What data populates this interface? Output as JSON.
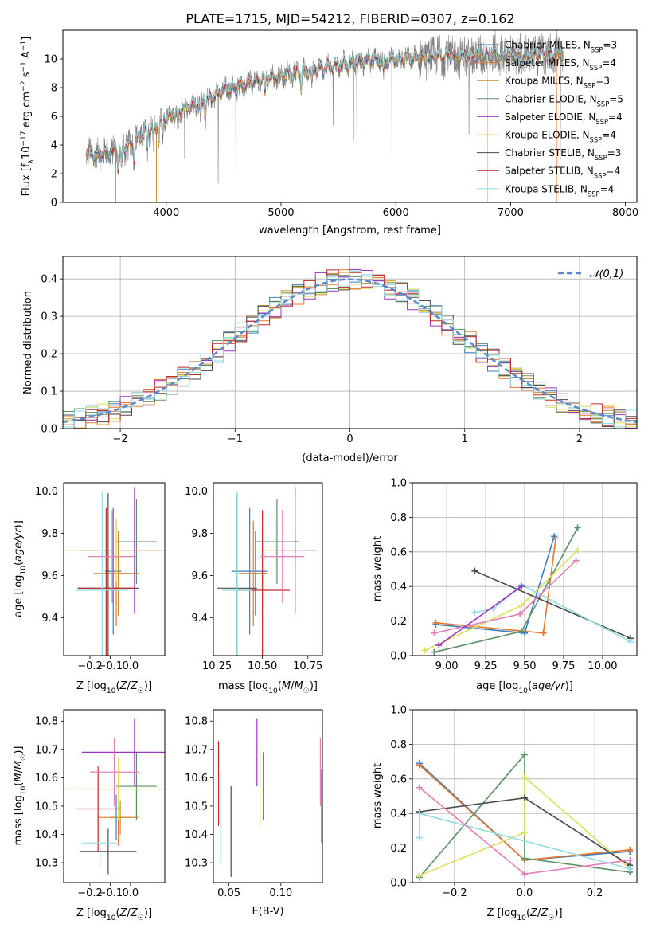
{
  "figure_title": "PLATE=1715, MJD=54212, FIBERID=0307, z=0.162",
  "colors": {
    "data": "#808080",
    "c_miles": "#3a7ebf",
    "s_miles": "#e8762a",
    "k_miles": "#c98d38",
    "c_elodie": "#5c8f64",
    "s_elodie": "#9a33c4",
    "k_elodie": "#dde05a",
    "c_stelib": "#4a4a4a",
    "s_stelib": "#c0282a",
    "k_stelib": "#90dde3",
    "normal": "#5588cc",
    "pink": "#e57fb8",
    "grid": "#b0b0b0"
  },
  "chart_data": [
    {
      "id": "spectrum",
      "type": "line",
      "title": "PLATE=1715, MJD=54212, FIBERID=0307, z=0.162",
      "xlabel": "wavelength [Angstrom, rest frame]",
      "ylabel": "Flux [f_λ10^-17 erg cm^-2 s^-1 A^-1]",
      "xlim": [
        3100,
        8100
      ],
      "ylim": [
        0,
        12
      ],
      "xticks": [
        4000,
        5000,
        6000,
        7000,
        8000
      ],
      "yticks": [
        0,
        2,
        4,
        6,
        8,
        10
      ],
      "grid": false,
      "legend_position": "top-right",
      "continuum": {
        "x": [
          3300,
          3400,
          3500,
          3600,
          3700,
          3800,
          3900,
          4000,
          4100,
          4200,
          4300,
          4400,
          4500,
          4600,
          4700,
          4800,
          4900,
          5000,
          5200,
          5400,
          5600,
          5800,
          6000,
          6200,
          6400,
          6600,
          6800,
          7000,
          7200,
          7400,
          7460
        ],
        "y": [
          3.4,
          3.3,
          3.5,
          3.6,
          4.1,
          4.8,
          5.2,
          5.8,
          6.3,
          6.7,
          6.9,
          7.3,
          7.8,
          8.0,
          8.3,
          8.6,
          8.7,
          8.8,
          9.2,
          9.4,
          9.7,
          9.9,
          10.0,
          10.1,
          10.2,
          10.2,
          10.3,
          10.2,
          10.3,
          10.4,
          10.3
        ]
      },
      "series": [
        {
          "name": "Chabrier MILES, N_SSP=3",
          "key": "c_miles"
        },
        {
          "name": "Salpeter MILES, N_SSP=4",
          "key": "s_miles"
        },
        {
          "name": "Kroupa MILES, N_SSP=3",
          "key": "k_miles"
        },
        {
          "name": "Chabrier ELODIE, N_SSP=5",
          "key": "c_elodie"
        },
        {
          "name": "Salpeter ELODIE, N_SSP=4",
          "key": "s_elodie"
        },
        {
          "name": "Kroupa ELODIE, N_SSP=4",
          "key": "k_elodie"
        },
        {
          "name": "Chabrier STELIB, N_SSP=3",
          "key": "c_stelib"
        },
        {
          "name": "Salpeter STELIB, N_SSP=4",
          "key": "s_stelib"
        },
        {
          "name": "Kroupa STELIB, N_SSP=4",
          "key": "k_stelib"
        }
      ]
    },
    {
      "id": "residuals",
      "type": "bar",
      "xlabel": "(data-model)/error",
      "ylabel": "Normed distribution",
      "xlim": [
        -2.5,
        2.5
      ],
      "ylim": [
        0,
        0.46
      ],
      "xticks": [
        -2,
        -1,
        0,
        1,
        2
      ],
      "yticks": [
        0.0,
        0.1,
        0.2,
        0.3,
        0.4
      ],
      "grid": true,
      "bin_width": 0.1,
      "normal_curve": {
        "name": "𝒩(0,1)",
        "style": "dashed"
      },
      "legend_position": "top-right"
    },
    {
      "id": "age-vs-Z",
      "type": "scatter",
      "xlabel": "Z [log10(Z/Z☉)]",
      "ylabel": "age  [log10(age/yr)]",
      "xlim": [
        -0.33,
        0.17
      ],
      "ylim": [
        9.22,
        10.04
      ],
      "xticks": [
        -0.2,
        -0.1,
        0.0
      ],
      "yticks": [
        9.4,
        9.6,
        9.8,
        10.0
      ],
      "grid": false,
      "points": [
        {
          "key": "c_miles",
          "x": -0.085,
          "xerr": 0.04,
          "y": 9.62,
          "yerr": 0.3
        },
        {
          "key": "s_miles",
          "x": -0.07,
          "xerr": 0.11,
          "y": 9.61,
          "yerr": 0.25
        },
        {
          "key": "k_miles",
          "x": -0.06,
          "xerr": 0.06,
          "y": 9.61,
          "yerr": 0.2
        },
        {
          "key": "c_elodie",
          "x": 0.03,
          "xerr": 0.1,
          "y": 9.76,
          "yerr": 0.2
        },
        {
          "key": "s_elodie",
          "x": 0.02,
          "xerr": 0.27,
          "y": 9.72,
          "yerr": 0.3
        },
        {
          "key": "k_elodie",
          "x": -0.07,
          "xerr": 0.29,
          "y": 9.72,
          "yerr": 0.15
        },
        {
          "key": "c_stelib",
          "x": -0.11,
          "xerr": 0.15,
          "y": 9.54,
          "yerr": 0.45
        },
        {
          "key": "s_stelib",
          "x": -0.12,
          "xerr": 0.14,
          "y": 9.54,
          "yerr": 0.38
        },
        {
          "key": "k_stelib",
          "x": -0.14,
          "xerr": 0.13,
          "y": 9.53,
          "yerr": 0.47
        },
        {
          "key": "pink",
          "x": -0.09,
          "xerr": 0.12,
          "y": 9.69,
          "yerr": 0.22
        }
      ]
    },
    {
      "id": "age-vs-mass",
      "type": "scatter",
      "xlabel": "mass [log10(M/M☉)]",
      "ylabel": "",
      "xlim": [
        10.23,
        10.83
      ],
      "ylim": [
        9.22,
        10.04
      ],
      "xticks": [
        10.25,
        10.5,
        10.75
      ],
      "yticks": [
        9.4,
        9.6,
        9.8,
        10.0
      ],
      "grid": false,
      "points": [
        {
          "key": "c_miles",
          "x": 10.43,
          "xerr": 0.1,
          "y": 9.62,
          "yerr": 0.3
        },
        {
          "key": "s_miles",
          "x": 10.45,
          "xerr": 0.08,
          "y": 9.61,
          "yerr": 0.25
        },
        {
          "key": "k_miles",
          "x": 10.46,
          "xerr": 0.06,
          "y": 9.61,
          "yerr": 0.2
        },
        {
          "key": "c_elodie",
          "x": 10.58,
          "xerr": 0.12,
          "y": 9.76,
          "yerr": 0.2
        },
        {
          "key": "s_elodie",
          "x": 10.68,
          "xerr": 0.12,
          "y": 9.72,
          "yerr": 0.3
        },
        {
          "key": "k_elodie",
          "x": 10.57,
          "xerr": 0.11,
          "y": 9.72,
          "yerr": 0.15
        },
        {
          "key": "c_stelib",
          "x": 10.36,
          "xerr": 0.11,
          "y": 9.54,
          "yerr": 0.45
        },
        {
          "key": "s_stelib",
          "x": 10.5,
          "xerr": 0.15,
          "y": 9.53,
          "yerr": 0.38
        },
        {
          "key": "k_stelib",
          "x": 10.36,
          "xerr": 0.08,
          "y": 9.53,
          "yerr": 0.47
        },
        {
          "key": "pink",
          "x": 10.61,
          "xerr": 0.12,
          "y": 9.69,
          "yerr": 0.22
        }
      ]
    },
    {
      "id": "weight-vs-age",
      "type": "line",
      "xlabel": "age  [log10(age/yr)]",
      "ylabel": "mass weight",
      "xlim": [
        8.78,
        10.22
      ],
      "ylim": [
        0,
        1
      ],
      "xticks": [
        9.0,
        9.25,
        9.5,
        9.75,
        10.0
      ],
      "yticks": [
        0.0,
        0.2,
        0.4,
        0.6,
        0.8,
        1.0
      ],
      "grid": true,
      "series": [
        {
          "key": "c_miles",
          "x": [
            8.93,
            9.5,
            9.69
          ],
          "y": [
            0.18,
            0.13,
            0.69
          ]
        },
        {
          "key": "s_miles",
          "x": [
            8.93,
            9.62,
            9.7
          ],
          "y": [
            0.19,
            0.13,
            0.68
          ]
        },
        {
          "key": "c_elodie",
          "x": [
            8.92,
            9.48,
            9.84
          ],
          "y": [
            0.02,
            0.14,
            0.74
          ]
        },
        {
          "key": "k_elodie",
          "x": [
            8.86,
            9.48,
            9.84
          ],
          "y": [
            0.03,
            0.29,
            0.61
          ]
        },
        {
          "key": "c_stelib",
          "x": [
            9.18,
            10.18
          ],
          "y": [
            0.49,
            0.1
          ]
        },
        {
          "key": "k_stelib",
          "x": [
            9.18,
            9.3,
            9.48,
            10.18
          ],
          "y": [
            0.25,
            0.27,
            0.41,
            0.08
          ]
        },
        {
          "key": "pink",
          "x": [
            8.92,
            9.47,
            9.83
          ],
          "y": [
            0.13,
            0.24,
            0.55
          ]
        },
        {
          "key": "s_elodie",
          "x": [
            8.95,
            9.48
          ],
          "y": [
            0.06,
            0.4
          ]
        }
      ]
    },
    {
      "id": "mass-vs-Z",
      "type": "scatter",
      "xlabel": "Z [log10(Z/Z☉)]",
      "ylabel": "mass [log10(M/M☉)]",
      "xlim": [
        -0.33,
        0.17
      ],
      "ylim": [
        10.23,
        10.84
      ],
      "xticks": [
        -0.2,
        -0.1,
        0.0
      ],
      "yticks": [
        10.3,
        10.4,
        10.5,
        10.6,
        10.7,
        10.8
      ],
      "grid": false,
      "points": [
        {
          "key": "c_miles",
          "x": -0.07,
          "xerr": 0.03,
          "y": 10.46,
          "yerr": 0.08
        },
        {
          "key": "s_miles",
          "x": -0.06,
          "xerr": 0.1,
          "y": 10.46,
          "yerr": 0.1
        },
        {
          "key": "k_miles",
          "x": -0.05,
          "xerr": 0.05,
          "y": 10.46,
          "yerr": 0.06
        },
        {
          "key": "c_elodie",
          "x": 0.03,
          "xerr": 0.1,
          "y": 10.57,
          "yerr": 0.12
        },
        {
          "key": "s_elodie",
          "x": 0.02,
          "xerr": 0.26,
          "y": 10.69,
          "yerr": 0.12
        },
        {
          "key": "k_elodie",
          "x": -0.06,
          "xerr": 0.28,
          "y": 10.56,
          "yerr": 0.11
        },
        {
          "key": "c_stelib",
          "x": -0.11,
          "xerr": 0.14,
          "y": 10.34,
          "yerr": 0.08
        },
        {
          "key": "s_stelib",
          "x": -0.16,
          "xerr": 0.11,
          "y": 10.49,
          "yerr": 0.15
        },
        {
          "key": "k_stelib",
          "x": -0.15,
          "xerr": 0.09,
          "y": 10.37,
          "yerr": 0.08
        },
        {
          "key": "pink",
          "x": -0.08,
          "xerr": 0.12,
          "y": 10.62,
          "yerr": 0.12
        }
      ]
    },
    {
      "id": "mass-vs-EBV",
      "type": "scatter",
      "xlabel": "E(B-V)",
      "ylabel": "",
      "xlim": [
        0.035,
        0.14
      ],
      "ylim": [
        10.23,
        10.84
      ],
      "xticks": [
        0.05,
        0.1
      ],
      "yticks": [
        10.3,
        10.4,
        10.5,
        10.6,
        10.7,
        10.8
      ],
      "grid": false,
      "points": [
        {
          "key": "s_stelib",
          "x": 0.04,
          "y": 10.58,
          "yerr": 0.15
        },
        {
          "key": "k_stelib",
          "x": 0.042,
          "y": 10.46,
          "yerr": 0.16
        },
        {
          "key": "c_stelib",
          "x": 0.052,
          "y": 10.41,
          "yerr": 0.16
        },
        {
          "key": "s_elodie",
          "x": 0.077,
          "y": 10.69,
          "yerr": 0.12
        },
        {
          "key": "k_elodie",
          "x": 0.08,
          "y": 10.56,
          "yerr": 0.14
        },
        {
          "key": "c_elodie",
          "x": 0.083,
          "y": 10.57,
          "yerr": 0.12
        },
        {
          "key": "pink",
          "x": 0.138,
          "y": 10.62,
          "yerr": 0.12
        },
        {
          "key": "s_miles",
          "x": 0.139,
          "y": 10.5,
          "yerr": 0.13
        }
      ]
    },
    {
      "id": "weight-vs-Z",
      "type": "line",
      "xlabel": "Z [log10(Z/Z☉)]",
      "ylabel": "mass weight",
      "xlim": [
        -0.32,
        0.32
      ],
      "ylim": [
        0,
        1
      ],
      "xticks": [
        -0.2,
        0.0,
        0.2
      ],
      "yticks": [
        0.0,
        0.2,
        0.4,
        0.6,
        0.8,
        1.0
      ],
      "grid": true,
      "series": [
        {
          "key": "c_miles",
          "x": [
            -0.3,
            0.0,
            0.3
          ],
          "y": [
            0.69,
            0.13,
            0.18
          ]
        },
        {
          "key": "s_miles",
          "x": [
            -0.3,
            0.0,
            0.3
          ],
          "y": [
            0.68,
            0.13,
            0.19
          ]
        },
        {
          "key": "c_elodie",
          "x": [
            -0.3,
            0.0,
            0.0,
            0.3
          ],
          "y": [
            0.03,
            0.74,
            0.14,
            0.06
          ]
        },
        {
          "key": "k_elodie",
          "x": [
            -0.3,
            0.0,
            0.0,
            0.3
          ],
          "y": [
            0.04,
            0.29,
            0.61,
            0.08
          ]
        },
        {
          "key": "c_stelib",
          "x": [
            -0.3,
            0.0,
            0.3
          ],
          "y": [
            0.41,
            0.49,
            0.1
          ]
        },
        {
          "key": "k_stelib",
          "x": [
            -0.3,
            -0.3,
            0.3
          ],
          "y": [
            0.26,
            0.4,
            0.08
          ]
        },
        {
          "key": "pink",
          "x": [
            -0.3,
            0.0,
            0.3
          ],
          "y": [
            0.55,
            0.05,
            0.13
          ]
        }
      ]
    }
  ]
}
